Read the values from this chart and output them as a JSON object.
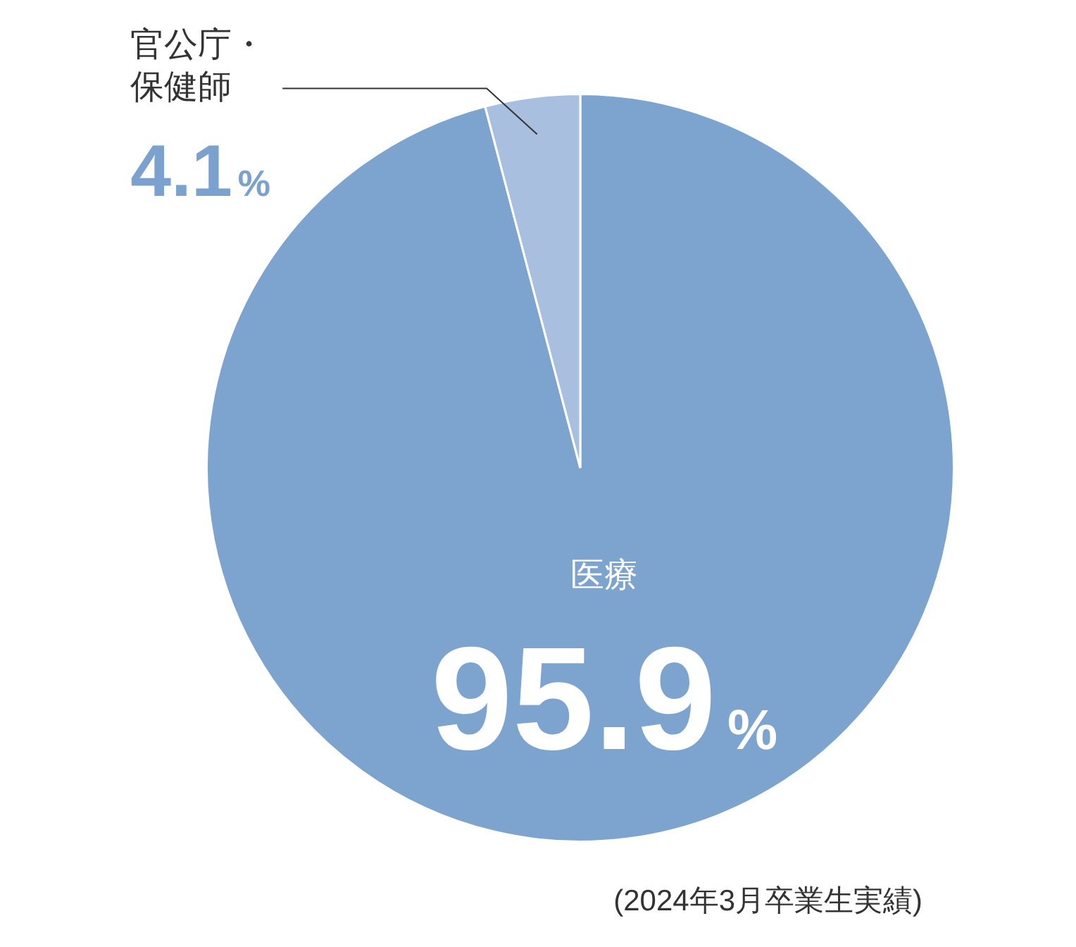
{
  "chart_data": {
    "type": "pie",
    "categories": [
      "医療",
      "官公庁・保健師"
    ],
    "values": [
      95.9,
      4.1
    ],
    "colors": [
      "#7da3cf",
      "#a9bfe0"
    ],
    "value_labels": [
      "95.9%",
      "4.1%"
    ],
    "annotations": [
      "(2024年3月卒業生実績)"
    ]
  }
}
